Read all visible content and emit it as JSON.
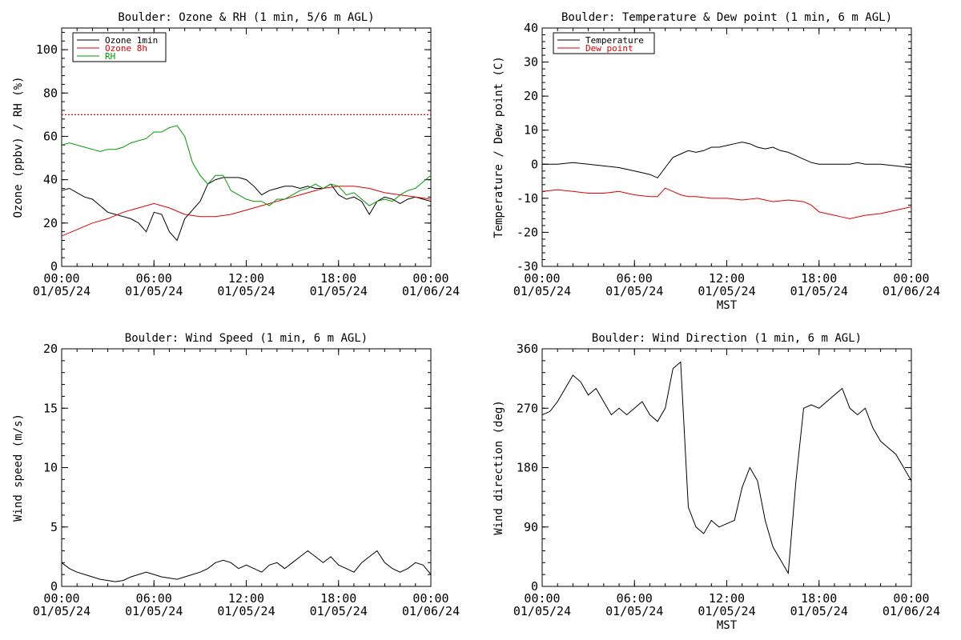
{
  "chart_data": [
    {
      "type": "line",
      "title": "Boulder: Ozone & RH (1 min, 5/6 m AGL)",
      "ylabel": "Ozone (ppbv) / RH (%)",
      "xlabel": "",
      "ylim": [
        0,
        110
      ],
      "yticks": [
        0,
        20,
        40,
        60,
        80,
        100
      ],
      "xticks": [
        "00:00|01/05/24",
        "06:00|01/05/24",
        "12:00|01/05/24",
        "18:00|01/05/24",
        "00:00|01/06/24"
      ],
      "x_hours": [
        0,
        24
      ],
      "legend": "top-left",
      "reference_lines": [
        {
          "y": 70,
          "color": "#dd0000",
          "style": "dotted"
        }
      ],
      "series": [
        {
          "name": "Ozone 1min",
          "color": "#000000",
          "x": [
            0,
            0.5,
            1,
            1.5,
            2,
            2.5,
            3,
            3.5,
            4,
            4.5,
            5,
            5.5,
            6,
            6.5,
            7,
            7.5,
            8,
            8.5,
            9,
            9.5,
            10,
            10.5,
            11,
            11.5,
            12,
            12.5,
            13,
            13.5,
            14,
            14.5,
            15,
            15.5,
            16,
            16.5,
            17,
            17.5,
            18,
            18.5,
            19,
            19.5,
            20,
            20.5,
            21,
            21.5,
            22,
            22.5,
            23,
            23.5,
            24
          ],
          "values": [
            35,
            36,
            34,
            32,
            31,
            28,
            25,
            24,
            23,
            22,
            20,
            16,
            25,
            24,
            16,
            12,
            22,
            26,
            30,
            38,
            40,
            41,
            41,
            41,
            40,
            37,
            33,
            35,
            36,
            37,
            37,
            36,
            37,
            36,
            36,
            38,
            33,
            31,
            32,
            30,
            24,
            30,
            32,
            31,
            29,
            31,
            32,
            31,
            30
          ]
        },
        {
          "name": "Ozone 8h",
          "color": "#dd0000",
          "x": [
            0,
            1,
            2,
            3,
            4,
            5,
            6,
            7,
            8,
            9,
            10,
            11,
            12,
            13,
            14,
            15,
            16,
            17,
            18,
            19,
            20,
            21,
            22,
            23,
            24
          ],
          "values": [
            14,
            17,
            20,
            22,
            25,
            27,
            29,
            27,
            24,
            23,
            23,
            24,
            26,
            28,
            30,
            32,
            34,
            36,
            37,
            37,
            36,
            34,
            33,
            32,
            31
          ]
        },
        {
          "name": "RH",
          "color": "#009900",
          "x": [
            0,
            0.5,
            1,
            1.5,
            2,
            2.5,
            3,
            3.5,
            4,
            4.5,
            5,
            5.5,
            6,
            6.5,
            7,
            7.5,
            8,
            8.5,
            9,
            9.5,
            10,
            10.5,
            11,
            11.5,
            12,
            12.5,
            13,
            13.5,
            14,
            14.5,
            15,
            15.5,
            16,
            16.5,
            17,
            17.5,
            18,
            18.5,
            19,
            19.5,
            20,
            20.5,
            21,
            21.5,
            22,
            22.5,
            23,
            23.5,
            24
          ],
          "values": [
            56,
            57,
            56,
            55,
            54,
            53,
            54,
            54,
            55,
            57,
            58,
            59,
            62,
            62,
            64,
            65,
            60,
            48,
            42,
            38,
            42,
            42,
            35,
            33,
            31,
            30,
            30,
            28,
            31,
            31,
            33,
            35,
            36,
            38,
            36,
            38,
            37,
            33,
            34,
            31,
            28,
            30,
            31,
            30,
            33,
            35,
            36,
            39,
            42
          ]
        }
      ]
    },
    {
      "type": "line",
      "title": "Boulder: Temperature & Dew point (1 min, 6 m AGL)",
      "ylabel": "Temperature / Dew point (C)",
      "xlabel": "MST",
      "ylim": [
        -30,
        40
      ],
      "yticks": [
        -30,
        -20,
        -10,
        0,
        10,
        20,
        30,
        40
      ],
      "xticks": [
        "00:00|01/05/24",
        "06:00|01/05/24",
        "12:00|01/05/24",
        "18:00|01/05/24",
        "00:00|01/06/24"
      ],
      "x_hours": [
        0,
        24
      ],
      "legend": "top-left",
      "series": [
        {
          "name": "Temperature",
          "color": "#000000",
          "x": [
            0,
            1,
            2,
            3,
            4,
            5,
            6,
            6.5,
            7,
            7.5,
            8,
            8.5,
            9,
            9.5,
            10,
            10.5,
            11,
            11.5,
            12,
            12.5,
            13,
            13.5,
            14,
            14.5,
            15,
            15.5,
            16,
            16.5,
            17,
            17.5,
            18,
            19,
            20,
            20.5,
            21,
            22,
            23,
            24
          ],
          "values": [
            0,
            0,
            0.5,
            0,
            -0.5,
            -1,
            -2,
            -2.5,
            -3,
            -4,
            -1,
            2,
            3,
            4,
            3.5,
            4,
            5,
            5,
            5.5,
            6,
            6.5,
            6,
            5,
            4.5,
            5,
            4,
            3.5,
            2.5,
            1.5,
            0.5,
            0,
            0,
            0,
            0.5,
            0,
            0,
            -0.5,
            -1
          ]
        },
        {
          "name": "Dew point",
          "color": "#dd0000",
          "x": [
            0,
            1,
            2,
            3,
            4,
            5,
            6,
            7,
            7.5,
            8,
            8.5,
            9,
            9.5,
            10,
            11,
            12,
            13,
            14,
            15,
            16,
            17,
            17.5,
            18,
            18.5,
            19,
            19.5,
            20,
            21,
            22,
            23,
            24
          ],
          "values": [
            -8,
            -7.5,
            -8,
            -8.5,
            -8.5,
            -8,
            -9,
            -9.5,
            -9.5,
            -7,
            -8,
            -9,
            -9.5,
            -9.5,
            -10,
            -10,
            -10.5,
            -10,
            -11,
            -10.5,
            -11,
            -12,
            -14,
            -14.5,
            -15,
            -15.5,
            -16,
            -15,
            -14.5,
            -13.5,
            -12.5
          ]
        }
      ]
    },
    {
      "type": "line",
      "title": "Boulder: Wind Speed (1 min, 6 m AGL)",
      "ylabel": "Wind speed (m/s)",
      "xlabel": "",
      "ylim": [
        0,
        20
      ],
      "yticks": [
        0,
        5,
        10,
        15,
        20
      ],
      "xticks": [
        "00:00|01/05/24",
        "06:00|01/05/24",
        "12:00|01/05/24",
        "18:00|01/05/24",
        "00:00|01/06/24"
      ],
      "x_hours": [
        0,
        24
      ],
      "series": [
        {
          "name": "",
          "color": "#000000",
          "x": [
            0,
            0.5,
            1,
            1.5,
            2,
            2.5,
            3,
            3.5,
            4,
            4.5,
            5,
            5.5,
            6,
            6.5,
            7,
            7.5,
            8,
            8.5,
            9,
            9.5,
            10,
            10.5,
            11,
            11.5,
            12,
            12.5,
            13,
            13.5,
            14,
            14.5,
            15,
            15.5,
            16,
            16.5,
            17,
            17.5,
            18,
            18.5,
            19,
            19.5,
            20,
            20.5,
            21,
            21.5,
            22,
            22.5,
            23,
            23.5,
            24
          ],
          "values": [
            2,
            1.5,
            1.2,
            1,
            0.8,
            0.6,
            0.5,
            0.4,
            0.5,
            0.8,
            1,
            1.2,
            1,
            0.8,
            0.7,
            0.6,
            0.8,
            1,
            1.2,
            1.5,
            2,
            2.2,
            2,
            1.5,
            1.8,
            1.5,
            1.2,
            1.8,
            2,
            1.5,
            2,
            2.5,
            3,
            2.5,
            2,
            2.5,
            1.8,
            1.5,
            1.2,
            2,
            2.5,
            3,
            2,
            1.5,
            1.2,
            1.5,
            2,
            1.8,
            1
          ]
        }
      ]
    },
    {
      "type": "line",
      "title": "Boulder: Wind Direction (1 min, 6 m AGL)",
      "ylabel": "Wind direction (deg)",
      "xlabel": "MST",
      "ylim": [
        0,
        360
      ],
      "yticks": [
        0,
        90,
        180,
        270,
        360
      ],
      "xticks": [
        "00:00|01/05/24",
        "06:00|01/05/24",
        "12:00|01/05/24",
        "18:00|01/05/24",
        "00:00|01/06/24"
      ],
      "x_hours": [
        0,
        24
      ],
      "series": [
        {
          "name": "",
          "color": "#000000",
          "x": [
            0,
            0.5,
            1,
            1.5,
            2,
            2.5,
            3,
            3.5,
            4,
            4.5,
            5,
            5.5,
            6,
            6.5,
            7,
            7.5,
            8,
            8.5,
            9,
            9.5,
            10,
            10.5,
            11,
            11.5,
            12,
            12.5,
            13,
            13.5,
            14,
            14.5,
            15,
            15.5,
            16,
            16.5,
            17,
            17.5,
            18,
            18.5,
            19,
            19.5,
            20,
            20.5,
            21,
            21.5,
            22,
            22.5,
            23,
            23.5,
            24
          ],
          "values": [
            260,
            265,
            280,
            300,
            320,
            310,
            290,
            300,
            280,
            260,
            270,
            260,
            270,
            280,
            260,
            250,
            270,
            330,
            340,
            120,
            90,
            80,
            100,
            90,
            95,
            100,
            150,
            180,
            160,
            100,
            60,
            40,
            20,
            160,
            270,
            275,
            270,
            280,
            290,
            300,
            270,
            260,
            270,
            240,
            220,
            210,
            200,
            180,
            160
          ]
        }
      ]
    }
  ]
}
